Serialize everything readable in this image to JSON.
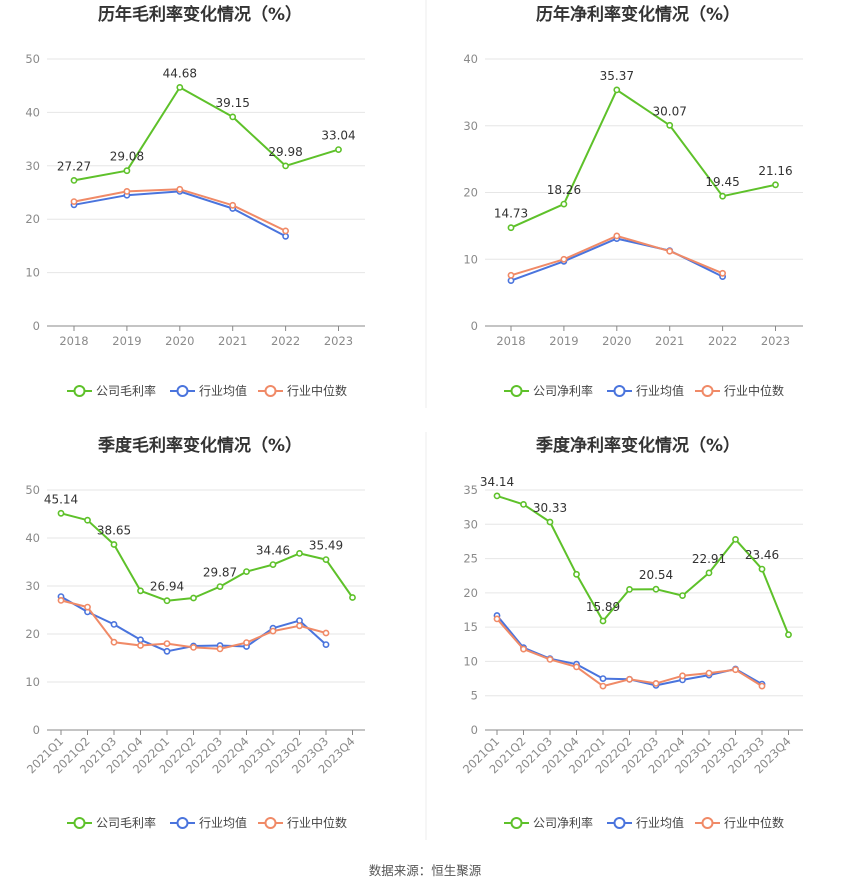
{
  "source_label": "数据来源：恒生聚源",
  "colors": {
    "company": "#5ec12a",
    "avg": "#4a74dd",
    "median": "#f08a67"
  },
  "chart_data": [
    {
      "type": "line",
      "title": "历年毛利率变化情况（%）",
      "categories": [
        "2018",
        "2019",
        "2020",
        "2021",
        "2022",
        "2023"
      ],
      "ylim": [
        0,
        50
      ],
      "yticks": [
        0,
        10,
        20,
        30,
        40,
        50
      ],
      "series": [
        {
          "name": "公司毛利率",
          "key": "company",
          "values": [
            27.27,
            29.08,
            44.68,
            39.15,
            29.98,
            33.04
          ],
          "labels": [
            "27.27",
            "29.08",
            "44.68",
            "39.15",
            "29.98",
            "33.04"
          ]
        },
        {
          "name": "行业均值",
          "key": "avg",
          "values": [
            22.7,
            24.5,
            25.2,
            22.0,
            16.8,
            null
          ]
        },
        {
          "name": "行业中位数",
          "key": "median",
          "values": [
            23.3,
            25.2,
            25.6,
            22.6,
            17.8,
            null
          ]
        }
      ]
    },
    {
      "type": "line",
      "title": "历年净利率变化情况（%）",
      "categories": [
        "2018",
        "2019",
        "2020",
        "2021",
        "2022",
        "2023"
      ],
      "ylim": [
        0,
        40
      ],
      "yticks": [
        0,
        10,
        20,
        30,
        40
      ],
      "series": [
        {
          "name": "公司净利率",
          "key": "company",
          "values": [
            14.73,
            18.26,
            35.37,
            30.07,
            19.45,
            21.16
          ],
          "labels": [
            "14.73",
            "18.26",
            "35.37",
            "30.07",
            "19.45",
            "21.16"
          ]
        },
        {
          "name": "行业均值",
          "key": "avg",
          "values": [
            6.8,
            9.7,
            13.1,
            11.3,
            7.4,
            null
          ]
        },
        {
          "name": "行业中位数",
          "key": "median",
          "values": [
            7.6,
            10.0,
            13.5,
            11.2,
            7.9,
            null
          ]
        }
      ]
    },
    {
      "type": "line",
      "title": "季度毛利率变化情况（%）",
      "categories": [
        "2021Q1",
        "2021Q2",
        "2021Q3",
        "2021Q4",
        "2022Q1",
        "2022Q2",
        "2022Q3",
        "2022Q4",
        "2023Q1",
        "2023Q2",
        "2023Q3",
        "2023Q4"
      ],
      "ylim": [
        0,
        50
      ],
      "yticks": [
        0,
        10,
        20,
        30,
        40,
        50
      ],
      "series": [
        {
          "name": "公司毛利率",
          "key": "company",
          "values": [
            45.14,
            43.7,
            38.65,
            29.0,
            26.94,
            27.5,
            29.87,
            33.0,
            34.46,
            36.8,
            35.49,
            27.6
          ],
          "labels": [
            "45.14",
            null,
            "38.65",
            null,
            "26.94",
            null,
            "29.87",
            null,
            "34.46",
            null,
            "35.49",
            null
          ]
        },
        {
          "name": "行业均值",
          "key": "avg",
          "values": [
            27.8,
            24.6,
            22.0,
            18.8,
            16.4,
            17.5,
            17.6,
            17.4,
            21.2,
            22.8,
            17.8,
            null
          ]
        },
        {
          "name": "行业中位数",
          "key": "median",
          "values": [
            27.0,
            25.6,
            18.3,
            17.6,
            18.0,
            17.2,
            16.9,
            18.2,
            20.6,
            21.7,
            20.2,
            null
          ]
        }
      ]
    },
    {
      "type": "line",
      "title": "季度净利率变化情况（%）",
      "categories": [
        "2021Q1",
        "2021Q2",
        "2021Q3",
        "2021Q4",
        "2022Q1",
        "2022Q2",
        "2022Q3",
        "2022Q4",
        "2023Q1",
        "2023Q2",
        "2023Q3",
        "2023Q4"
      ],
      "ylim": [
        0,
        35
      ],
      "yticks": [
        0,
        5,
        10,
        15,
        20,
        25,
        30,
        35
      ],
      "series": [
        {
          "name": "公司净利率",
          "key": "company",
          "values": [
            34.14,
            32.9,
            30.33,
            22.7,
            15.89,
            20.5,
            20.54,
            19.6,
            22.91,
            27.8,
            23.46,
            13.9
          ],
          "labels": [
            "34.14",
            null,
            "30.33",
            null,
            "15.89",
            null,
            "20.54",
            null,
            "22.91",
            null,
            "23.46",
            null
          ]
        },
        {
          "name": "行业均值",
          "key": "avg",
          "values": [
            16.7,
            12.0,
            10.4,
            9.6,
            7.5,
            7.4,
            6.5,
            7.3,
            8.0,
            8.9,
            6.7,
            null
          ]
        },
        {
          "name": "行业中位数",
          "key": "median",
          "values": [
            16.2,
            11.8,
            10.3,
            9.2,
            6.4,
            7.4,
            6.8,
            7.9,
            8.3,
            8.8,
            6.4,
            null
          ]
        }
      ]
    }
  ]
}
